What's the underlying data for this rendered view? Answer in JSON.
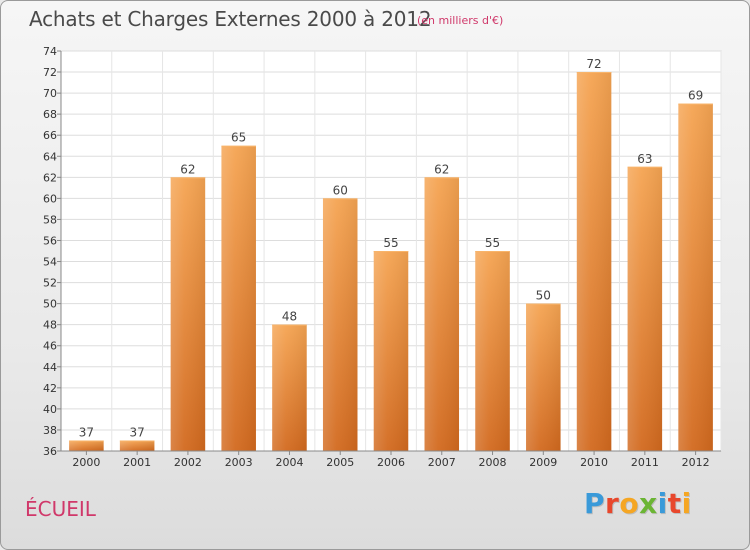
{
  "header": {
    "title": "Achats et Charges Externes 2000 à 2012",
    "subtitle": "(en milliers d'€)"
  },
  "footer": {
    "location": "ÉCUEIL",
    "logo_text": "Proxiti",
    "logo_letters": [
      {
        "char": "P",
        "color": "#3a9ad9"
      },
      {
        "char": "r",
        "color": "#e8472c"
      },
      {
        "char": "o",
        "color": "#f5a623"
      },
      {
        "char": "x",
        "color": "#6bb534"
      },
      {
        "char": "i",
        "color": "#3a9ad9"
      },
      {
        "char": "t",
        "color": "#e8472c"
      },
      {
        "char": "i",
        "color": "#f5a623"
      }
    ]
  },
  "chart_data": {
    "type": "bar",
    "title": "Achats et Charges Externes 2000 à 2012",
    "subtitle": "(en milliers d'€)",
    "xlabel": "",
    "ylabel": "",
    "categories": [
      "2000",
      "2001",
      "2002",
      "2003",
      "2004",
      "2005",
      "2006",
      "2007",
      "2008",
      "2009",
      "2010",
      "2011",
      "2012"
    ],
    "values": [
      37,
      37,
      62,
      65,
      48,
      60,
      55,
      62,
      55,
      50,
      72,
      63,
      69
    ],
    "ylim": [
      36,
      74
    ],
    "yticks": [
      36,
      38,
      40,
      42,
      44,
      46,
      48,
      50,
      52,
      54,
      56,
      58,
      60,
      62,
      64,
      66,
      68,
      70,
      72,
      74
    ],
    "grid": true,
    "data_labels": true,
    "bar_color_top": "#f5a452",
    "bar_color_bottom": "#d2691e"
  }
}
